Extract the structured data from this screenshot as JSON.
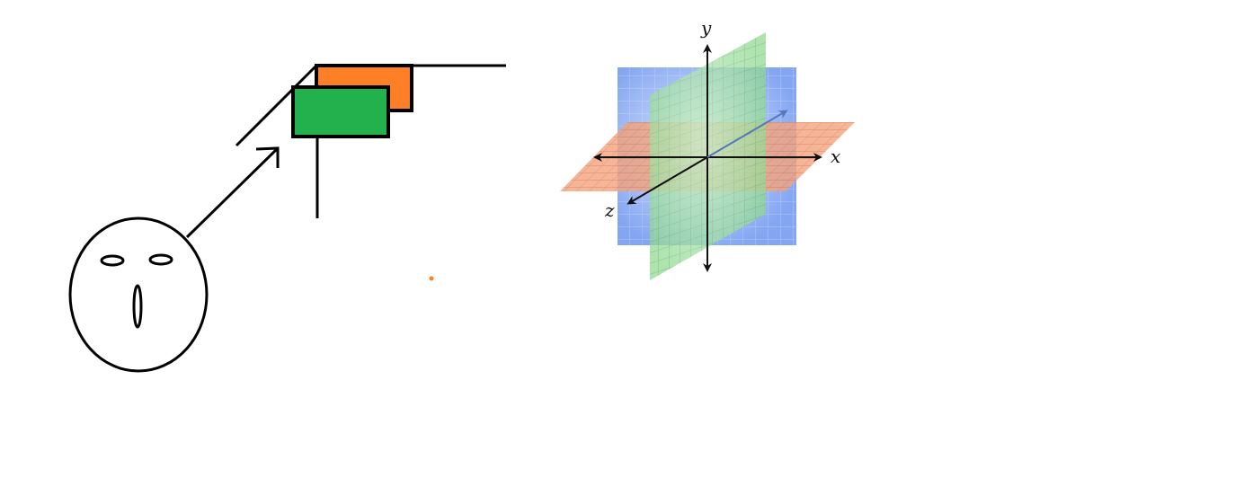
{
  "diagram": {
    "colors": {
      "ink": "#000000",
      "orange_panel": "#ff7f27",
      "green_panel": "#22b14c",
      "blue_plane": "#6f97f0",
      "green_plane": "#8fd88f",
      "orange_plane": "#f2a27c",
      "dot": "#ff7f27"
    },
    "axes": {
      "x_label": "x",
      "y_label": "y",
      "z_label": "z"
    }
  }
}
